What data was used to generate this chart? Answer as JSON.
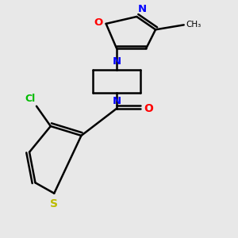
{
  "background_color": "#e8e8e8",
  "figsize": [
    3.0,
    3.0
  ],
  "dpi": 100,
  "atom_colors": {
    "S": "#bbbb00",
    "Cl": "#00bb00",
    "O": "#ff0000",
    "N": "#0000ff",
    "C": "#000000"
  },
  "lw": 1.8
}
